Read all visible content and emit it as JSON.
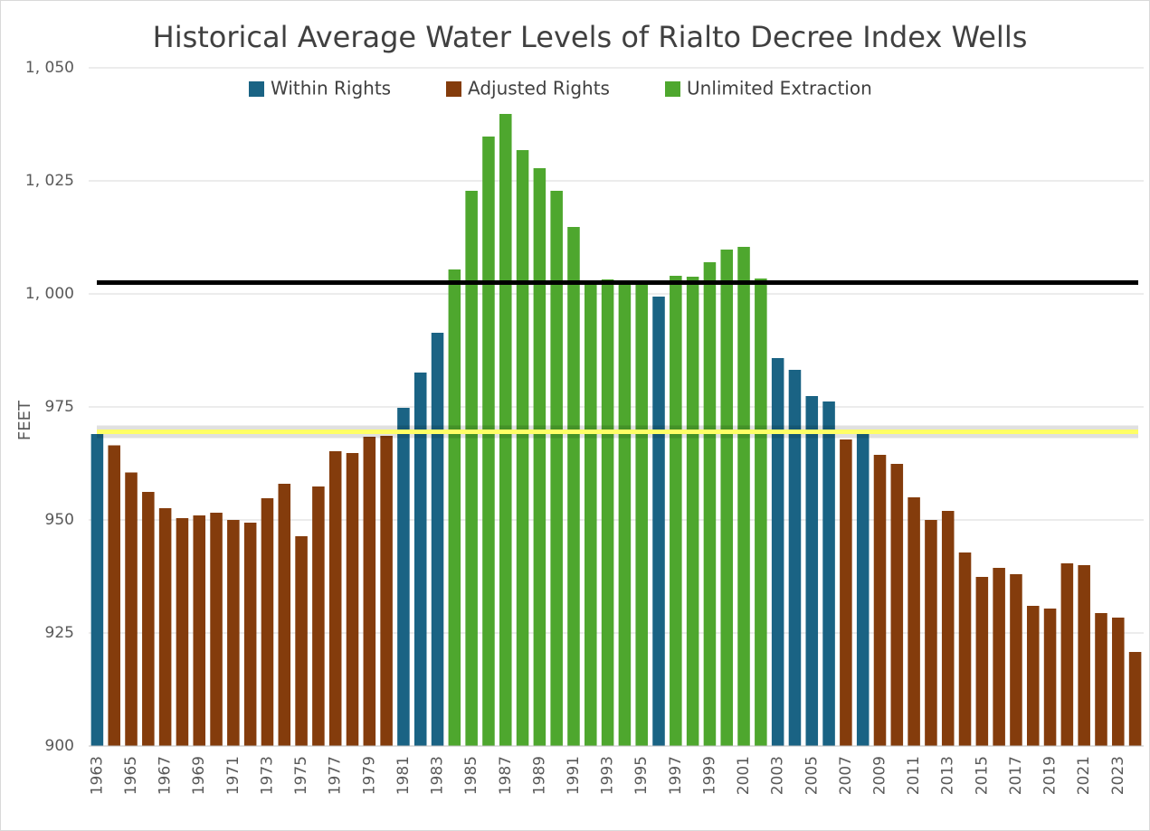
{
  "chart_data": {
    "type": "bar",
    "title": "Historical Average Water Levels of Rialto Decree Index Wells",
    "y_label": "FEET",
    "categories": [
      "1963",
      null,
      "1965",
      null,
      "1967",
      null,
      "1969",
      null,
      "1971",
      null,
      "1973",
      null,
      "1975",
      null,
      "1977",
      null,
      "1979",
      null,
      "1981",
      null,
      "1983",
      null,
      "1985",
      null,
      "1987",
      null,
      "1989",
      null,
      "1991",
      null,
      "1993",
      null,
      "1995",
      null,
      "1997",
      null,
      "1999",
      null,
      "2001",
      null,
      "2003",
      null,
      "2005",
      null,
      "2007",
      null,
      "2009",
      null,
      "2011",
      null,
      "2013",
      null,
      "2015",
      null,
      "2017",
      null,
      "2019",
      null,
      "2021",
      null,
      "2023",
      null
    ],
    "series": [
      {
        "name": "Within Rights",
        "color": "#1a6384",
        "values": [
          969,
          null,
          null,
          null,
          null,
          null,
          null,
          null,
          null,
          null,
          null,
          null,
          null,
          null,
          null,
          null,
          null,
          null,
          974.8,
          982.6,
          991.4,
          null,
          null,
          null,
          null,
          null,
          null,
          null,
          null,
          null,
          null,
          null,
          null,
          999.4,
          null,
          null,
          null,
          null,
          null,
          null,
          985.8,
          983.2,
          977.4,
          976.2,
          null,
          969.4,
          null,
          null,
          null,
          null,
          null,
          null,
          null,
          null,
          null,
          null,
          null,
          null,
          null,
          null,
          null,
          null
        ]
      },
      {
        "name": "Adjusted Rights",
        "color": "#843c0c",
        "values": [
          null,
          966.5,
          960.5,
          956.2,
          952.6,
          950.4,
          951,
          951.6,
          950,
          949.4,
          954.8,
          958,
          946.4,
          957.4,
          965.2,
          964.8,
          968.4,
          968.6,
          null,
          null,
          null,
          null,
          null,
          null,
          null,
          null,
          null,
          null,
          null,
          null,
          null,
          null,
          null,
          null,
          null,
          null,
          null,
          null,
          null,
          null,
          null,
          null,
          null,
          null,
          967.8,
          null,
          964.4,
          962.4,
          955,
          950,
          952,
          942.8,
          937.4,
          939.4,
          938,
          931,
          930.4,
          940.4,
          940,
          929.4,
          928.4,
          920.8
        ]
      },
      {
        "name": "Unlimited Extraction",
        "color": "#4ea72e",
        "values": [
          null,
          null,
          null,
          null,
          null,
          null,
          null,
          null,
          null,
          null,
          null,
          null,
          null,
          null,
          null,
          null,
          null,
          null,
          null,
          null,
          null,
          1005.4,
          1022.8,
          1034.8,
          1039.8,
          1031.8,
          1027.8,
          1022.8,
          1014.8,
          1002.6,
          1003.2,
          1002.8,
          1002.4,
          null,
          1004,
          1003.8,
          1007,
          1009.8,
          1010.4,
          1003.4,
          null,
          null,
          null,
          null,
          null,
          null,
          null,
          null,
          null,
          null,
          null,
          null,
          null,
          null,
          null,
          null,
          null,
          null,
          null,
          null,
          null,
          null
        ]
      }
    ],
    "reference_lines": [
      {
        "value": 1002.5,
        "color": "#000000"
      },
      {
        "value": 969.5,
        "color": "#ffff66"
      }
    ],
    "ylim": [
      900,
      1050
    ],
    "yticks": [
      900,
      925,
      950,
      975,
      {
        "value": 1000,
        "label": "1, 000"
      },
      {
        "value": 1025,
        "label": "1, 025"
      },
      {
        "value": 1050,
        "label": "1, 050"
      }
    ],
    "grid": true
  }
}
